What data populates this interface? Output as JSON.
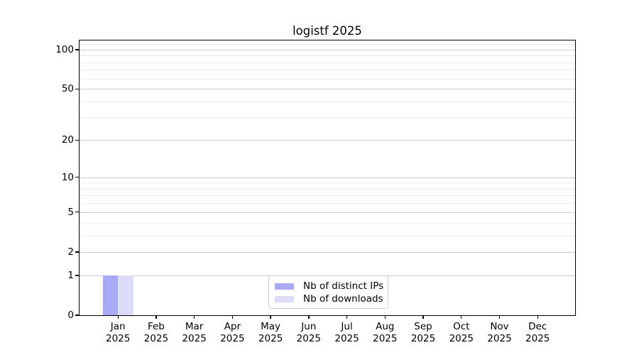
{
  "chart_data": {
    "type": "bar",
    "title": "logistf 2025",
    "categories": [
      "Jan",
      "Feb",
      "Mar",
      "Apr",
      "May",
      "Jun",
      "Jul",
      "Aug",
      "Sep",
      "Oct",
      "Nov",
      "Dec"
    ],
    "tick_year": "2025",
    "series": [
      {
        "name": "Nb of distinct IPs",
        "color": "#a9a9f5",
        "values": [
          1,
          0,
          0,
          0,
          0,
          0,
          0,
          0,
          0,
          0,
          0,
          0
        ]
      },
      {
        "name": "Nb of downloads",
        "color": "#dcdcf8",
        "values": [
          1,
          0,
          0,
          0,
          0,
          0,
          0,
          0,
          0,
          0,
          0,
          0
        ]
      }
    ],
    "yscale": "log1p",
    "ylim": [
      0,
      117
    ],
    "y_major_ticks": [
      0,
      1,
      2,
      5,
      10,
      20,
      50,
      100
    ],
    "y_minor_gridlines": [
      3,
      4,
      6,
      7,
      8,
      9,
      30,
      40,
      60,
      70,
      80,
      90,
      110
    ],
    "grid": true,
    "legend_position": "lower-center",
    "axis_color": "#000000",
    "bar_value_jan_distinct_ips": 1,
    "bar_value_jan_downloads": 1
  }
}
